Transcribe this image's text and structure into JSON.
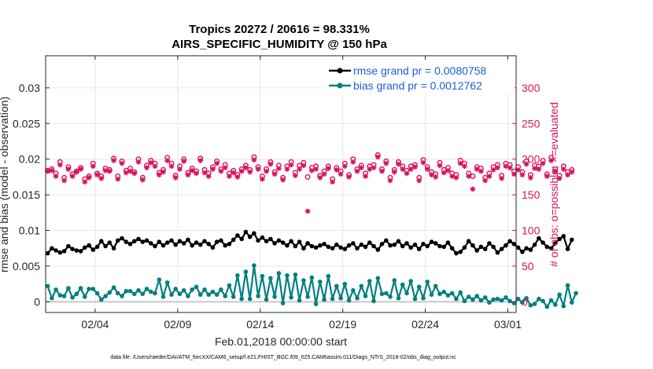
{
  "chart_data": {
    "type": "line",
    "title_line1": "Tropics 20272 / 20616 = 98.331%",
    "title_line2": "AIRS_SPECIFIC_HUMIDITY @ 150 hPa",
    "xlabel": "Feb.01,2018 00:00:00 start",
    "ylabel_left": "rmse and bias (model - observation)",
    "ylabel_right": "# of obs: o=possible; ×=evaluated",
    "footer": "data file: /Users/raeder/DAI/ATM_forcXX/CAM6_setup/f.e21.FHIST_BGC.f09_025.CAM6assim.011/Diags_NTrS_2018-02/obs_diag_output.nc",
    "xlim": [
      0,
      28.5
    ],
    "ylim_left": [
      -0.0015,
      0.0345
    ],
    "ylim_right": [
      -15,
      345
    ],
    "x_ticks": [
      {
        "value": 3,
        "label": "02/04"
      },
      {
        "value": 8,
        "label": "02/09"
      },
      {
        "value": 13,
        "label": "02/14"
      },
      {
        "value": 18,
        "label": "02/19"
      },
      {
        "value": 23,
        "label": "02/24"
      },
      {
        "value": 28,
        "label": "03/01"
      }
    ],
    "y_ticks_left": [
      {
        "value": 0,
        "label": "0"
      },
      {
        "value": 0.005,
        "label": "0.005"
      },
      {
        "value": 0.01,
        "label": "0.01"
      },
      {
        "value": 0.015,
        "label": "0.015"
      },
      {
        "value": 0.02,
        "label": "0.02"
      },
      {
        "value": 0.025,
        "label": "0.025"
      },
      {
        "value": 0.03,
        "label": "0.03"
      }
    ],
    "y_ticks_right": [
      {
        "value": 0,
        "label": "0"
      },
      {
        "value": 50,
        "label": "50"
      },
      {
        "value": 100,
        "label": "100"
      },
      {
        "value": 150,
        "label": "150"
      },
      {
        "value": 200,
        "label": "200"
      },
      {
        "value": 250,
        "label": "250"
      },
      {
        "value": 300,
        "label": "300"
      }
    ],
    "legend": [
      {
        "label": "rmse grand pr = 0.0080758",
        "color": "#000000",
        "series": "rmse"
      },
      {
        "label": "bias grand pr = 0.0012762",
        "color": "#00807f",
        "series": "bias"
      }
    ],
    "series": [
      {
        "name": "rmse",
        "axis": "left",
        "color": "#000000",
        "marker": "dot",
        "x_start": 0.125,
        "x_step": 0.25,
        "values": [
          0.0068,
          0.0075,
          0.0072,
          0.0069,
          0.0071,
          0.0078,
          0.0074,
          0.0072,
          0.0071,
          0.0076,
          0.0079,
          0.0073,
          0.0077,
          0.0085,
          0.0078,
          0.0083,
          0.0075,
          0.0086,
          0.0089,
          0.0084,
          0.0081,
          0.0085,
          0.0088,
          0.0084,
          0.0086,
          0.0082,
          0.0078,
          0.0084,
          0.0079,
          0.0083,
          0.0086,
          0.008,
          0.0085,
          0.0082,
          0.0087,
          0.0079,
          0.0083,
          0.008,
          0.0085,
          0.0081,
          0.0076,
          0.0084,
          0.0086,
          0.0079,
          0.0081,
          0.0087,
          0.0093,
          0.0088,
          0.0098,
          0.0091,
          0.0096,
          0.0086,
          0.009,
          0.0085,
          0.0088,
          0.0082,
          0.0086,
          0.0083,
          0.0079,
          0.0085,
          0.0078,
          0.0084,
          0.0075,
          0.0082,
          0.0078,
          0.0076,
          0.0079,
          0.0081,
          0.0077,
          0.0075,
          0.008,
          0.0076,
          0.0074,
          0.0079,
          0.0082,
          0.0075,
          0.008,
          0.0077,
          0.0083,
          0.0078,
          0.0073,
          0.0081,
          0.0086,
          0.0079,
          0.008,
          0.0085,
          0.0078,
          0.0082,
          0.0076,
          0.008,
          0.0074,
          0.0081,
          0.0078,
          0.0084,
          0.0082,
          0.0078,
          0.0077,
          0.0083,
          0.0075,
          0.0068,
          0.007,
          0.0076,
          0.0085,
          0.0079,
          0.0072,
          0.0077,
          0.0074,
          0.0082,
          0.0077,
          0.0069,
          0.0074,
          0.0079,
          0.0085,
          0.0081,
          0.0076,
          0.007,
          0.0075,
          0.0073,
          0.008,
          0.0089,
          0.0083,
          0.0077,
          0.0075,
          0.0082,
          0.0088,
          0.0092,
          0.0074,
          0.0087
        ]
      },
      {
        "name": "bias",
        "axis": "left",
        "color": "#00807f",
        "marker": "dot",
        "x_start": 0.125,
        "x_step": 0.25,
        "values": [
          0.0022,
          0.0005,
          0.0017,
          0.0009,
          0.0008,
          0.0019,
          0.0006,
          0.0011,
          0.0019,
          0.0007,
          0.0018,
          0.0018,
          0.0012,
          0.0003,
          0.0008,
          0.0013,
          0.002,
          0.0012,
          0.0008,
          0.0015,
          0.0015,
          0.0011,
          0.0016,
          0.0011,
          0.0018,
          0.0014,
          0.0012,
          0.0031,
          0.0007,
          0.0027,
          0.001,
          0.0018,
          0.0011,
          0.0016,
          0.0008,
          0.0017,
          0.0021,
          0.001,
          0.0017,
          0.001,
          0.0014,
          0.001,
          0.0017,
          0.0008,
          0.0023,
          0.0007,
          0.0037,
          0.0004,
          0.0042,
          0.0004,
          0.0051,
          0.0008,
          0.0036,
          0.0003,
          0.0033,
          0.0007,
          0.004,
          -0.0002,
          0.0037,
          0.0006,
          0.0038,
          0.0002,
          0.003,
          0.0007,
          0.0034,
          -0.0003,
          0.0028,
          0.0003,
          0.0036,
          0.0004,
          0.0022,
          0.0005,
          0.0025,
          0.0002,
          0.0016,
          0.0005,
          0.0022,
          0.0008,
          0.0029,
          0.0001,
          0.0033,
          0.0011,
          0.0012,
          0.0007,
          0.003,
          0.0005,
          0.0024,
          0.0012,
          0.0029,
          0.0004,
          0.0021,
          0.0005,
          0.0028,
          0.001,
          0.0022,
          0.0011,
          0.0014,
          0.0009,
          0.0012,
          0.0004,
          0.0013,
          0.0001,
          0.0007,
          0.0003,
          0.0008,
          0.0002,
          0.0006,
          -0.0001,
          0.0003,
          0.0004,
          0.0002,
          0.0006,
          0.0001,
          -0.0002,
          0.0004,
          -0.0001,
          0.0005,
          -0.0005,
          -0.0003,
          0.0004,
          0.0001,
          -0.0007,
          0.0002,
          -0.0004,
          0.001,
          -0.0006,
          0.0023,
          -0.0001,
          0.0012
        ]
      },
      {
        "name": "possible",
        "axis": "right",
        "color": "#d6145a",
        "marker": "circle",
        "x_start": 0.125,
        "x_step": 0.25,
        "values": [
          184,
          186,
          180,
          196,
          174,
          189,
          179,
          183,
          188,
          172,
          176,
          194,
          180,
          176,
          187,
          185,
          201,
          176,
          197,
          184,
          187,
          182,
          200,
          174,
          191,
          198,
          194,
          181,
          185,
          202,
          194,
          177,
          190,
          200,
          181,
          187,
          183,
          201,
          185,
          180,
          189,
          197,
          186,
          192,
          180,
          184,
          178,
          186,
          191,
          185,
          203,
          189,
          176,
          186,
          196,
          182,
          191,
          174,
          190,
          196,
          181,
          191,
          195,
          175,
          188,
          190,
          177,
          183,
          190,
          172,
          188,
          183,
          194,
          178,
          200,
          186,
          191,
          180,
          190,
          192,
          206,
          186,
          197,
          174,
          185,
          196,
          190,
          184,
          190,
          192,
          174,
          199,
          189,
          182,
          179,
          195,
          185,
          188,
          180,
          178,
          198,
          194,
          180,
          176,
          189,
          187,
          174,
          180,
          189,
          192,
          177,
          194,
          192,
          183,
          189,
          182,
          197,
          178,
          191,
          190,
          198,
          179,
          202,
          186,
          177,
          190,
          182,
          185
        ]
      },
      {
        "name": "evaluated",
        "axis": "right",
        "color": "#d6145a",
        "marker": "star",
        "x_start": 0.125,
        "x_step": 0.25,
        "values": [
          183,
          184,
          176,
          192,
          170,
          186,
          176,
          182,
          186,
          168,
          174,
          190,
          178,
          173,
          184,
          183,
          198,
          172,
          194,
          181,
          183,
          180,
          196,
          171,
          188,
          195,
          190,
          178,
          182,
          198,
          190,
          174,
          186,
          197,
          178,
          184,
          180,
          198,
          181,
          176,
          186,
          194,
          183,
          188,
          176,
          181,
          175,
          183,
          188,
          182,
          199,
          186,
          172,
          183,
          193,
          179,
          187,
          171,
          186,
          192,
          177,
          186,
          191,
          127,
          184,
          186,
          174,
          179,
          187,
          168,
          185,
          179,
          190,
          175,
          196,
          183,
          188,
          176,
          186,
          188,
          203,
          183,
          194,
          170,
          182,
          193,
          186,
          180,
          186,
          189,
          170,
          195,
          186,
          178,
          175,
          191,
          181,
          184,
          176,
          174,
          194,
          190,
          176,
          158,
          186,
          183,
          170,
          176,
          185,
          188,
          173,
          190,
          188,
          179,
          185,
          178,
          193,
          174,
          187,
          186,
          194,
          176,
          198,
          183,
          173,
          186,
          178,
          182
        ]
      }
    ]
  }
}
